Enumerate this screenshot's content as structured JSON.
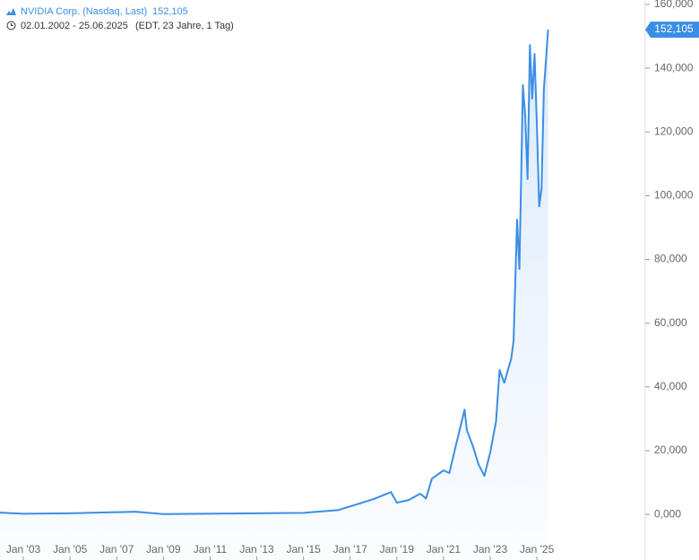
{
  "chart_data": {
    "type": "line",
    "title": "NVIDIA Corp. (Nasdaq, Last)",
    "subtitle": "02.01.2002 - 25.06.2025",
    "subtitle_note": "(EDT, 23 Jahre, 1 Tag)",
    "last_value": {
      "value": 152105,
      "label": "152,105"
    },
    "x": [
      2002.0,
      2003.0,
      2005.0,
      2007.8,
      2009.0,
      2012.0,
      2015.0,
      2016.5,
      2017.0,
      2018.0,
      2018.75,
      2019.0,
      2019.5,
      2020.0,
      2020.25,
      2020.5,
      2021.0,
      2021.25,
      2021.5,
      2021.9,
      2022.0,
      2022.25,
      2022.5,
      2022.75,
      2023.0,
      2023.25,
      2023.4,
      2023.6,
      2023.9,
      2024.0,
      2024.15,
      2024.25,
      2024.4,
      2024.5,
      2024.6,
      2024.7,
      2024.8,
      2024.9,
      2025.0,
      2025.1,
      2025.2,
      2025.3,
      2025.48
    ],
    "series": [
      {
        "name": "NVIDIA Corp. (Nasdaq, Last)",
        "color": "#3b8ee5",
        "values": [
          560,
          200,
          350,
          850,
          100,
          300,
          500,
          1400,
          2500,
          4800,
          7000,
          3700,
          4500,
          6500,
          5000,
          11200,
          13800,
          13000,
          20800,
          32900,
          26400,
          21600,
          15700,
          12100,
          19400,
          29200,
          45300,
          41300,
          48900,
          54600,
          92500,
          77000,
          134700,
          124800,
          105200,
          147300,
          130500,
          144500,
          122000,
          96700,
          102400,
          133300,
          152105
        ]
      }
    ],
    "xlim": [
      2002,
      2029.64
    ],
    "xticks": [
      {
        "value": 2003,
        "label": "Jan '03"
      },
      {
        "value": 2005,
        "label": "Jan '05"
      },
      {
        "value": 2007,
        "label": "Jan '07"
      },
      {
        "value": 2009,
        "label": "Jan '09"
      },
      {
        "value": 2011,
        "label": "Jan '11"
      },
      {
        "value": 2013,
        "label": "Jan '13"
      },
      {
        "value": 2015,
        "label": "Jan '15"
      },
      {
        "value": 2017,
        "label": "Jan '17"
      },
      {
        "value": 2019,
        "label": "Jan '19"
      },
      {
        "value": 2021,
        "label": "Jan '21"
      },
      {
        "value": 2023,
        "label": "Jan '23"
      },
      {
        "value": 2025,
        "label": "Jan '25"
      }
    ],
    "ylim": [
      -14300,
      161400
    ],
    "yticks": [
      {
        "value": 0,
        "label": "0,000"
      },
      {
        "value": 20000,
        "label": "20,000"
      },
      {
        "value": 40000,
        "label": "40,000"
      },
      {
        "value": 60000,
        "label": "60,000"
      },
      {
        "value": 80000,
        "label": "80,000"
      },
      {
        "value": 100000,
        "label": "100,000"
      },
      {
        "value": 120000,
        "label": "120,000"
      },
      {
        "value": 140000,
        "label": "140,000"
      },
      {
        "value": 160000,
        "label": "160,000"
      }
    ]
  }
}
